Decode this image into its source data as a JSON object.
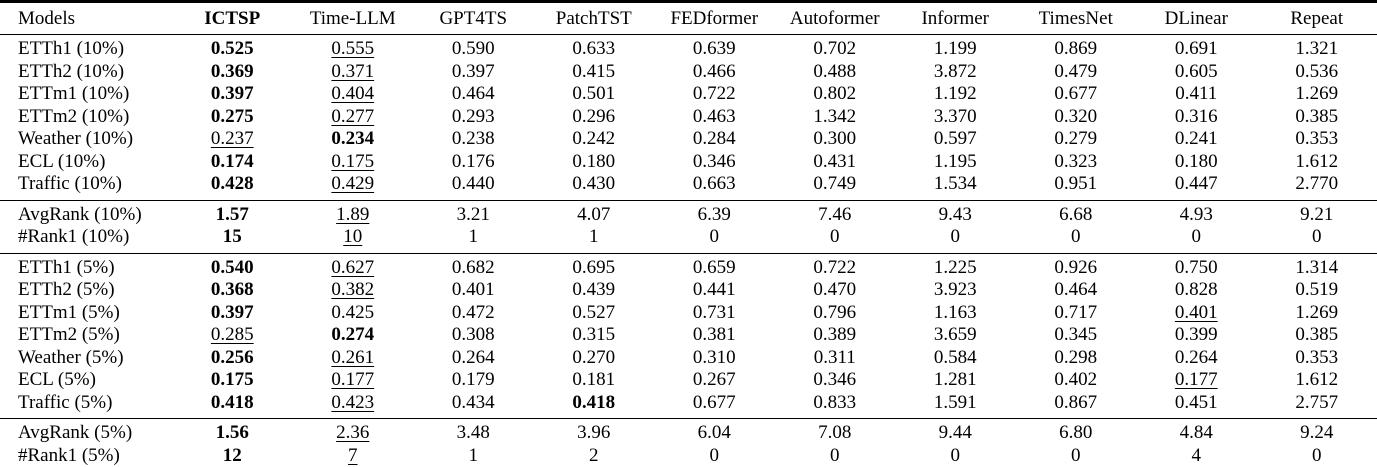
{
  "colors": {
    "text": "#000000",
    "background": "#ffffff",
    "rule": "#000000"
  },
  "table": {
    "columns": [
      {
        "label": "Models",
        "bold": false
      },
      {
        "label": "ICTSP",
        "bold": true
      },
      {
        "label": "Time-LLM",
        "bold": false
      },
      {
        "label": "GPT4TS",
        "bold": false
      },
      {
        "label": "PatchTST",
        "bold": false
      },
      {
        "label": "FEDformer",
        "bold": false
      },
      {
        "label": "Autoformer",
        "bold": false
      },
      {
        "label": "Informer",
        "bold": false
      },
      {
        "label": "TimesNet",
        "bold": false
      },
      {
        "label": "DLinear",
        "bold": false
      },
      {
        "label": "Repeat",
        "bold": false
      }
    ],
    "sections": [
      {
        "name": "few-shot-10pct",
        "rows": [
          {
            "label": "ETTh1 (10%)",
            "cells": [
              {
                "t": "0.525",
                "f": "b"
              },
              {
                "t": "0.555",
                "f": "u"
              },
              {
                "t": "0.590"
              },
              {
                "t": "0.633"
              },
              {
                "t": "0.639"
              },
              {
                "t": "0.702"
              },
              {
                "t": "1.199"
              },
              {
                "t": "0.869"
              },
              {
                "t": "0.691"
              },
              {
                "t": "1.321"
              }
            ]
          },
          {
            "label": "ETTh2 (10%)",
            "cells": [
              {
                "t": "0.369",
                "f": "b"
              },
              {
                "t": "0.371",
                "f": "u"
              },
              {
                "t": "0.397"
              },
              {
                "t": "0.415"
              },
              {
                "t": "0.466"
              },
              {
                "t": "0.488"
              },
              {
                "t": "3.872"
              },
              {
                "t": "0.479"
              },
              {
                "t": "0.605"
              },
              {
                "t": "0.536"
              }
            ]
          },
          {
            "label": "ETTm1 (10%)",
            "cells": [
              {
                "t": "0.397",
                "f": "b"
              },
              {
                "t": "0.404",
                "f": "u"
              },
              {
                "t": "0.464"
              },
              {
                "t": "0.501"
              },
              {
                "t": "0.722"
              },
              {
                "t": "0.802"
              },
              {
                "t": "1.192"
              },
              {
                "t": "0.677"
              },
              {
                "t": "0.411"
              },
              {
                "t": "1.269"
              }
            ]
          },
          {
            "label": "ETTm2 (10%)",
            "cells": [
              {
                "t": "0.275",
                "f": "b"
              },
              {
                "t": "0.277",
                "f": "u"
              },
              {
                "t": "0.293"
              },
              {
                "t": "0.296"
              },
              {
                "t": "0.463"
              },
              {
                "t": "1.342"
              },
              {
                "t": "3.370"
              },
              {
                "t": "0.320"
              },
              {
                "t": "0.316"
              },
              {
                "t": "0.385"
              }
            ]
          },
          {
            "label": "Weather (10%)",
            "cells": [
              {
                "t": "0.237",
                "f": "u"
              },
              {
                "t": "0.234",
                "f": "b"
              },
              {
                "t": "0.238"
              },
              {
                "t": "0.242"
              },
              {
                "t": "0.284"
              },
              {
                "t": "0.300"
              },
              {
                "t": "0.597"
              },
              {
                "t": "0.279"
              },
              {
                "t": "0.241"
              },
              {
                "t": "0.353"
              }
            ]
          },
          {
            "label": "ECL (10%)",
            "cells": [
              {
                "t": "0.174",
                "f": "b"
              },
              {
                "t": "0.175",
                "f": "u"
              },
              {
                "t": "0.176"
              },
              {
                "t": "0.180"
              },
              {
                "t": "0.346"
              },
              {
                "t": "0.431"
              },
              {
                "t": "1.195"
              },
              {
                "t": "0.323"
              },
              {
                "t": "0.180"
              },
              {
                "t": "1.612"
              }
            ]
          },
          {
            "label": "Traffic (10%)",
            "cells": [
              {
                "t": "0.428",
                "f": "b"
              },
              {
                "t": "0.429",
                "f": "u"
              },
              {
                "t": "0.440"
              },
              {
                "t": "0.430"
              },
              {
                "t": "0.663"
              },
              {
                "t": "0.749"
              },
              {
                "t": "1.534"
              },
              {
                "t": "0.951"
              },
              {
                "t": "0.447"
              },
              {
                "t": "2.770"
              }
            ]
          }
        ]
      },
      {
        "name": "rank-10pct",
        "rows": [
          {
            "label": "AvgRank (10%)",
            "cells": [
              {
                "t": "1.57",
                "f": "b"
              },
              {
                "t": "1.89",
                "f": "u"
              },
              {
                "t": "3.21"
              },
              {
                "t": "4.07"
              },
              {
                "t": "6.39"
              },
              {
                "t": "7.46"
              },
              {
                "t": "9.43"
              },
              {
                "t": "6.68"
              },
              {
                "t": "4.93"
              },
              {
                "t": "9.21"
              }
            ]
          },
          {
            "label": "#Rank1 (10%)",
            "cells": [
              {
                "t": "15",
                "f": "b"
              },
              {
                "t": "10",
                "f": "u"
              },
              {
                "t": "1"
              },
              {
                "t": "1"
              },
              {
                "t": "0"
              },
              {
                "t": "0"
              },
              {
                "t": "0"
              },
              {
                "t": "0"
              },
              {
                "t": "0"
              },
              {
                "t": "0"
              }
            ]
          }
        ]
      },
      {
        "name": "few-shot-5pct",
        "rows": [
          {
            "label": "ETTh1 (5%)",
            "cells": [
              {
                "t": "0.540",
                "f": "b"
              },
              {
                "t": "0.627",
                "f": "u"
              },
              {
                "t": "0.682"
              },
              {
                "t": "0.695"
              },
              {
                "t": "0.659"
              },
              {
                "t": "0.722"
              },
              {
                "t": "1.225"
              },
              {
                "t": "0.926"
              },
              {
                "t": "0.750"
              },
              {
                "t": "1.314"
              }
            ]
          },
          {
            "label": "ETTh2 (5%)",
            "cells": [
              {
                "t": "0.368",
                "f": "b"
              },
              {
                "t": "0.382",
                "f": "u"
              },
              {
                "t": "0.401"
              },
              {
                "t": "0.439"
              },
              {
                "t": "0.441"
              },
              {
                "t": "0.470"
              },
              {
                "t": "3.923"
              },
              {
                "t": "0.464"
              },
              {
                "t": "0.828"
              },
              {
                "t": "0.519"
              }
            ]
          },
          {
            "label": "ETTm1 (5%)",
            "cells": [
              {
                "t": "0.397",
                "f": "b"
              },
              {
                "t": "0.425"
              },
              {
                "t": "0.472"
              },
              {
                "t": "0.527"
              },
              {
                "t": "0.731"
              },
              {
                "t": "0.796"
              },
              {
                "t": "1.163"
              },
              {
                "t": "0.717"
              },
              {
                "t": "0.401",
                "f": "u"
              },
              {
                "t": "1.269"
              }
            ]
          },
          {
            "label": "ETTm2 (5%)",
            "cells": [
              {
                "t": "0.285",
                "f": "u"
              },
              {
                "t": "0.274",
                "f": "b"
              },
              {
                "t": "0.308"
              },
              {
                "t": "0.315"
              },
              {
                "t": "0.381"
              },
              {
                "t": "0.389"
              },
              {
                "t": "3.659"
              },
              {
                "t": "0.345"
              },
              {
                "t": "0.399"
              },
              {
                "t": "0.385"
              }
            ]
          },
          {
            "label": "Weather (5%)",
            "cells": [
              {
                "t": "0.256",
                "f": "b"
              },
              {
                "t": "0.261",
                "f": "u"
              },
              {
                "t": "0.264"
              },
              {
                "t": "0.270"
              },
              {
                "t": "0.310"
              },
              {
                "t": "0.311"
              },
              {
                "t": "0.584"
              },
              {
                "t": "0.298"
              },
              {
                "t": "0.264"
              },
              {
                "t": "0.353"
              }
            ]
          },
          {
            "label": "ECL (5%)",
            "cells": [
              {
                "t": "0.175",
                "f": "b"
              },
              {
                "t": "0.177",
                "f": "u"
              },
              {
                "t": "0.179"
              },
              {
                "t": "0.181"
              },
              {
                "t": "0.267"
              },
              {
                "t": "0.346"
              },
              {
                "t": "1.281"
              },
              {
                "t": "0.402"
              },
              {
                "t": "0.177",
                "f": "u"
              },
              {
                "t": "1.612"
              }
            ]
          },
          {
            "label": "Traffic (5%)",
            "cells": [
              {
                "t": "0.418",
                "f": "b"
              },
              {
                "t": "0.423",
                "f": "u"
              },
              {
                "t": "0.434"
              },
              {
                "t": "0.418",
                "f": "b"
              },
              {
                "t": "0.677"
              },
              {
                "t": "0.833"
              },
              {
                "t": "1.591"
              },
              {
                "t": "0.867"
              },
              {
                "t": "0.451"
              },
              {
                "t": "2.757"
              }
            ]
          }
        ]
      },
      {
        "name": "rank-5pct",
        "rows": [
          {
            "label": "AvgRank (5%)",
            "cells": [
              {
                "t": "1.56",
                "f": "b"
              },
              {
                "t": "2.36",
                "f": "u"
              },
              {
                "t": "3.48"
              },
              {
                "t": "3.96"
              },
              {
                "t": "6.04"
              },
              {
                "t": "7.08"
              },
              {
                "t": "9.44"
              },
              {
                "t": "6.80"
              },
              {
                "t": "4.84"
              },
              {
                "t": "9.24"
              }
            ]
          },
          {
            "label": "#Rank1 (5%)",
            "cells": [
              {
                "t": "12",
                "f": "b"
              },
              {
                "t": "7",
                "f": "u"
              },
              {
                "t": "1"
              },
              {
                "t": "2"
              },
              {
                "t": "0"
              },
              {
                "t": "0"
              },
              {
                "t": "0"
              },
              {
                "t": "0"
              },
              {
                "t": "4"
              },
              {
                "t": "0"
              }
            ]
          }
        ]
      }
    ]
  }
}
